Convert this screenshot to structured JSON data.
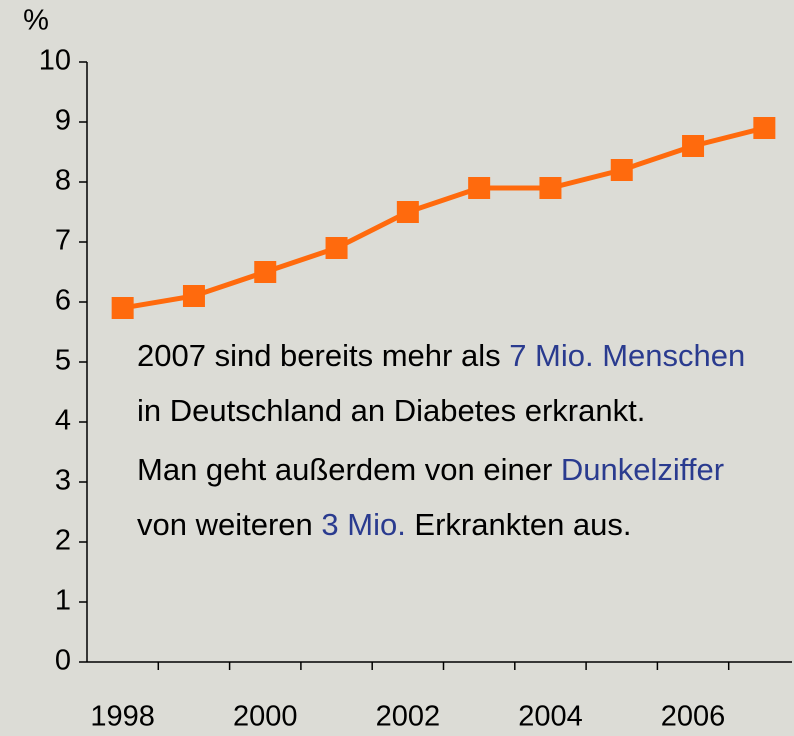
{
  "chart_data": {
    "type": "line",
    "y_unit": "%",
    "categories": [
      "1998",
      null,
      "2000",
      null,
      "2002",
      null,
      "2004",
      null,
      "2006",
      null
    ],
    "series": [
      {
        "color": "#ff6a0d",
        "values": [
          5.9,
          6.1,
          6.5,
          6.9,
          7.5,
          7.9,
          7.9,
          8.2,
          8.6,
          8.9
        ]
      }
    ],
    "ylim": [
      0,
      10
    ],
    "yticks": [
      0,
      1,
      2,
      3,
      4,
      5,
      6,
      7,
      8,
      9,
      10
    ],
    "annotations": [
      [
        {
          "text": "2007 sind bereits mehr als "
        },
        {
          "text": "7 Mio. Menschen",
          "color": "#2a3b8f"
        },
        {
          "text": " in Deutschland an Diabetes erkrankt."
        }
      ],
      [
        {
          "text": "Man geht außerdem von einer "
        },
        {
          "text": "Dunkelziffer",
          "color": "#2a3b8f"
        },
        {
          "text": " von weiteren "
        },
        {
          "text": "3 Mio.",
          "color": "#2a3b8f"
        },
        {
          "text": " Erkrankten aus."
        }
      ]
    ]
  }
}
